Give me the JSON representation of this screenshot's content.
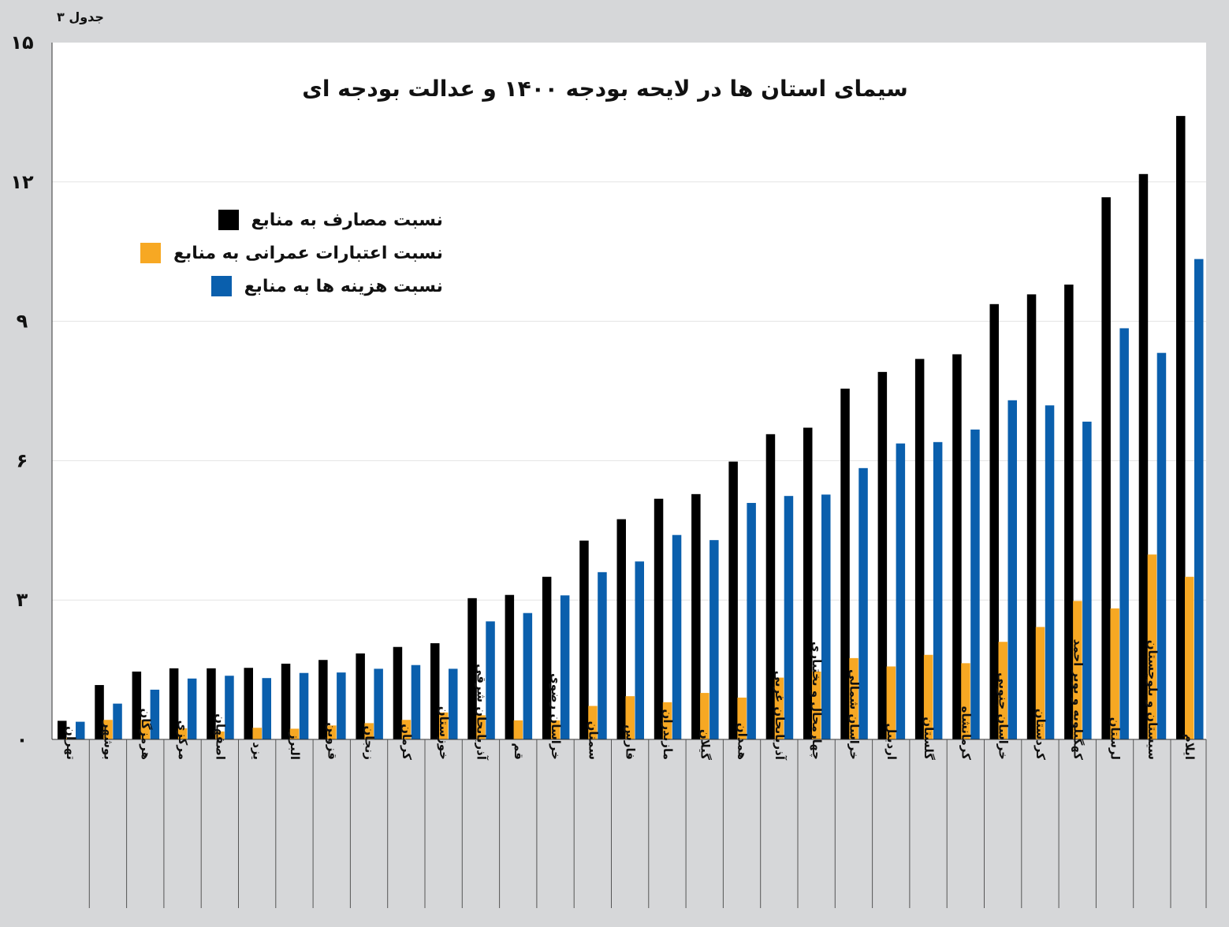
{
  "corner_label": "جدول ۳",
  "chart_data": {
    "type": "bar",
    "title": "سیمای استان ها در لایحه بودجه ۱۴۰۰ و عدالت بودجه ای",
    "xlabel": "",
    "ylabel": "",
    "ylim": [
      0,
      15
    ],
    "yticks": [
      0,
      3,
      6,
      9,
      12,
      15
    ],
    "ytick_labels": [
      "۰",
      "۳",
      "۶",
      "۹",
      "۱۲",
      "۱۵"
    ],
    "grid": true,
    "legend_position": "top-left",
    "categories": [
      "تهران",
      "بوشهر",
      "هرمزگان",
      "مرکزی",
      "اصفهان",
      "یزد",
      "البرز",
      "قزوین",
      "زنجان",
      "کرمان",
      "خوزستان",
      "آذربایجان شرقی",
      "قم",
      "خراسان رضوی",
      "سمنان",
      "فارس",
      "مازندران",
      "گیلان",
      "همدان",
      "آذربایجان غربی",
      "چهارمحال و بختیاری",
      "خراسان شمالی",
      "اردبیل",
      "گلستان",
      "کرمانشاه",
      "خراسان جنوبی",
      "کردستان",
      "کهگیلویه و بویر احمد",
      "لرستان",
      "سیستان و بلوچستان",
      "ایلام"
    ],
    "series": [
      {
        "name": "نسبت مصارف به منابع",
        "color": "#000000",
        "values": [
          0.4,
          1.17,
          1.46,
          1.53,
          1.53,
          1.54,
          1.63,
          1.71,
          1.85,
          1.99,
          2.07,
          3.04,
          3.11,
          3.5,
          4.28,
          4.74,
          5.18,
          5.28,
          5.98,
          6.57,
          6.71,
          7.55,
          7.91,
          8.19,
          8.29,
          9.37,
          9.58,
          9.79,
          11.67,
          12.17,
          13.42
        ]
      },
      {
        "name": "نسبت اعتبارات عمرانی به منابع",
        "color": "#f7a823",
        "values": [
          0.03,
          0.42,
          0.42,
          0.24,
          0.17,
          0.25,
          0.23,
          0.3,
          0.35,
          0.42,
          0.58,
          0.52,
          0.41,
          0.41,
          0.72,
          0.93,
          0.8,
          1.0,
          0.9,
          1.33,
          1.46,
          1.75,
          1.57,
          1.82,
          1.64,
          2.1,
          2.42,
          2.98,
          2.82,
          3.98,
          3.5
        ]
      },
      {
        "name": "نسبت هزینه ها به منابع",
        "color": "#0a5fad",
        "values": [
          0.38,
          0.77,
          1.07,
          1.31,
          1.37,
          1.32,
          1.43,
          1.44,
          1.52,
          1.6,
          1.52,
          2.54,
          2.72,
          3.1,
          3.6,
          3.83,
          4.4,
          4.29,
          5.09,
          5.24,
          5.27,
          5.84,
          6.37,
          6.4,
          6.67,
          7.3,
          7.19,
          6.84,
          8.85,
          8.32,
          10.34
        ]
      }
    ]
  }
}
